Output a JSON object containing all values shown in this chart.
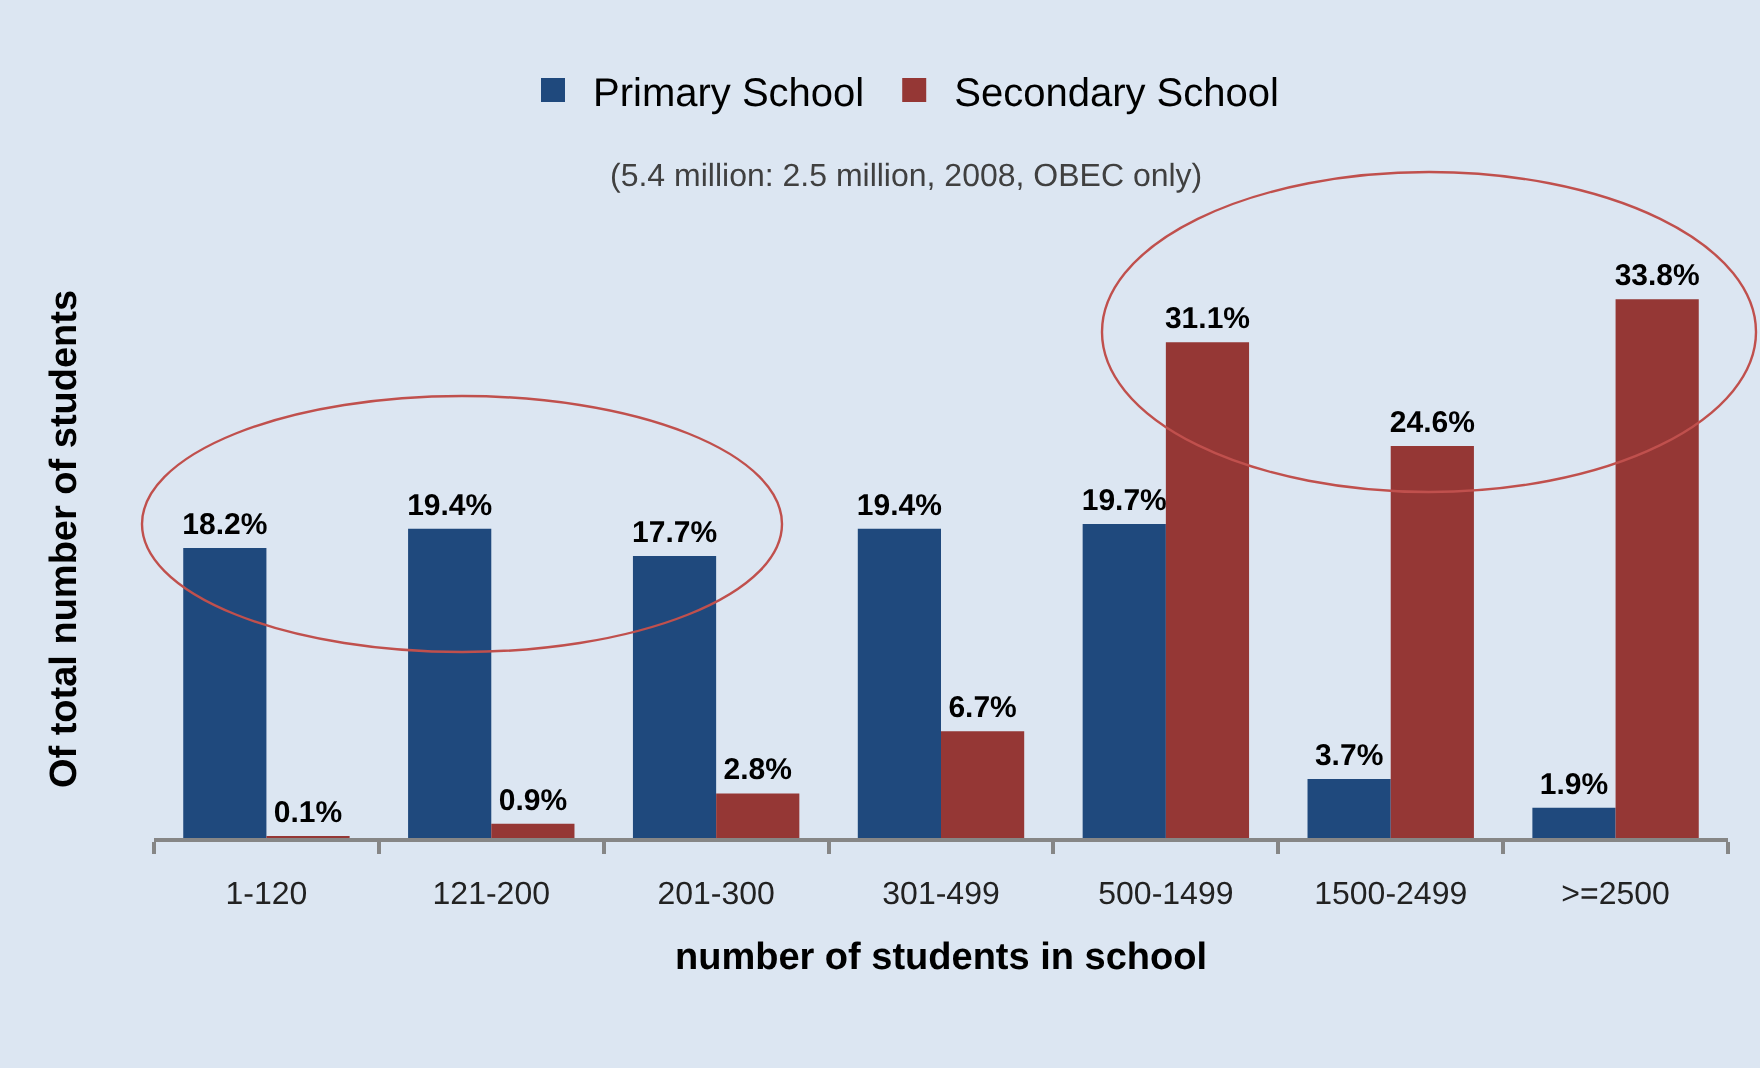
{
  "chart_data": {
    "type": "bar",
    "subtitle": "(5.4 million: 2.5 million, 2008, OBEC only)",
    "xlabel": "number of students in school",
    "ylabel": "Of total number of students",
    "categories": [
      "1-120",
      "121-200",
      "201-300",
      "301-499",
      "500-1499",
      "1500-2499",
      ">=2500"
    ],
    "series": [
      {
        "name": "Primary School",
        "color": "#1f497d",
        "values": [
          18.2,
          19.4,
          17.7,
          19.4,
          19.7,
          3.7,
          1.9
        ],
        "value_labels": [
          "18.2%",
          "19.4%",
          "17.7%",
          "19.4%",
          "19.7%",
          "3.7%",
          "1.9%"
        ]
      },
      {
        "name": "Secondary School",
        "color": "#953735",
        "values": [
          0.1,
          0.9,
          2.8,
          6.7,
          31.1,
          24.6,
          33.8
        ],
        "value_labels": [
          "0.1%",
          "0.9%",
          "2.8%",
          "6.7%",
          "31.1%",
          "24.6%",
          "33.8%"
        ]
      }
    ],
    "legend": "top"
  }
}
